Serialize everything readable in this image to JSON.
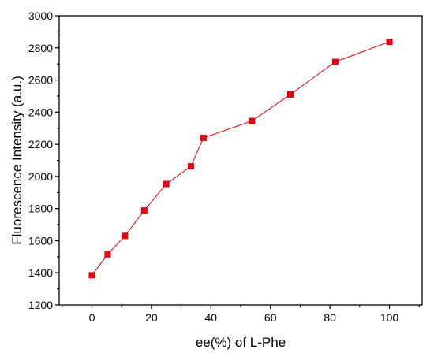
{
  "chart_data": {
    "type": "line",
    "title": "",
    "xlabel": "ee(%) of L-Phe",
    "ylabel": "Fluorescence Intensity (a.u.)",
    "xlim": [
      -11,
      111
    ],
    "ylim": [
      1200,
      3000
    ],
    "xticks": [
      "0",
      "20",
      "40",
      "60",
      "80",
      "100"
    ],
    "yticks": [
      "1200",
      "1400",
      "1600",
      "1800",
      "2000",
      "2200",
      "2400",
      "2600",
      "2800",
      "3000"
    ],
    "grid": false,
    "legend": "none",
    "series": [
      {
        "color": "#e8000b",
        "marker": "square",
        "x": [
          0,
          5.3,
          11.1,
          17.6,
          25,
          33.3,
          37.5,
          53.8,
          66.7,
          81.8,
          100
        ],
        "y": [
          1385,
          1515,
          1630,
          1788,
          1953,
          2063,
          2240,
          2345,
          2510,
          2713,
          2838
        ]
      }
    ]
  }
}
